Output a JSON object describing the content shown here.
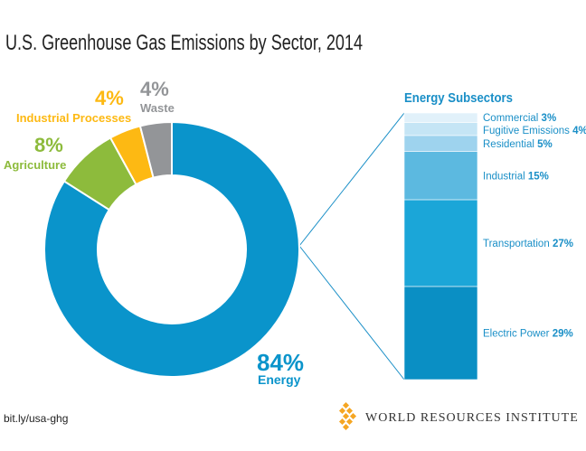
{
  "chart_data": [
    {
      "type": "donut",
      "title": "U.S. Greenhouse Gas Emissions by Sector, 2014",
      "categories": [
        "Energy",
        "Agriculture",
        "Industrial Processes",
        "Waste"
      ],
      "values": [
        84,
        8,
        4,
        4
      ],
      "value_labels": [
        "84%",
        "8%",
        "4%",
        "4%"
      ],
      "colors": [
        "#0a94cb",
        "#8dbb3c",
        "#fdb913",
        "#939598"
      ]
    },
    {
      "type": "stacked-bar",
      "title": "Energy Subsectors",
      "categories": [
        "Electric Power",
        "Transportation",
        "Industrial",
        "Residential",
        "Fugitive Emissions",
        "Commercial"
      ],
      "values": [
        29,
        27,
        15,
        5,
        4,
        3
      ],
      "value_labels": [
        "29%",
        "27%",
        "15%",
        "5%",
        "4%",
        "3%"
      ],
      "colors": [
        "#0a8fc4",
        "#1ba6d8",
        "#5cb9e0",
        "#9ed3ee",
        "#c5e5f5",
        "#e1f1fa"
      ]
    }
  ],
  "footer": {
    "source": "bit.ly/usa-ghg",
    "organization": "WORLD RESOURCES INSTITUTE"
  }
}
